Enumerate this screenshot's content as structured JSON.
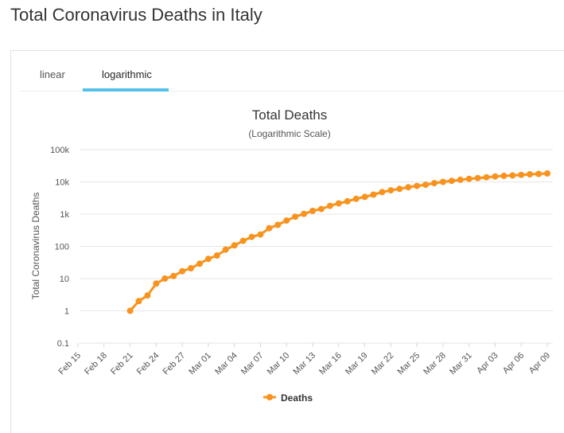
{
  "page": {
    "title": "Total Coronavirus Deaths in Italy"
  },
  "tabs": [
    {
      "label": "linear",
      "active": false
    },
    {
      "label": "logarithmic",
      "active": true
    }
  ],
  "colors": {
    "series": "#f7931e",
    "tab_accent": "#56c1e8",
    "grid": "#e6e6e6"
  },
  "chart_data": {
    "type": "line",
    "title": "Total Deaths",
    "subtitle": "(Logarithmic Scale)",
    "ylabel": "Total Coronavirus Deaths",
    "xlabel": "",
    "yscale": "log",
    "ylim": [
      0.1,
      100000
    ],
    "yticks": [
      {
        "value": 100000,
        "label": "100k"
      },
      {
        "value": 10000,
        "label": "10k"
      },
      {
        "value": 1000,
        "label": "1k"
      },
      {
        "value": 100,
        "label": "100"
      },
      {
        "value": 10,
        "label": "10"
      },
      {
        "value": 1,
        "label": "1"
      },
      {
        "value": 0.1,
        "label": "0.1"
      }
    ],
    "xticks": [
      "Feb 15",
      "Feb 18",
      "Feb 21",
      "Feb 24",
      "Feb 27",
      "Mar 01",
      "Mar 04",
      "Mar 07",
      "Mar 10",
      "Mar 13",
      "Mar 16",
      "Mar 19",
      "Mar 22",
      "Mar 25",
      "Mar 28",
      "Mar 31",
      "Apr 03",
      "Apr 06",
      "Apr 09"
    ],
    "grid": true,
    "legend_position": "bottom-center",
    "series": [
      {
        "name": "Deaths",
        "x": [
          "Feb 21",
          "Feb 22",
          "Feb 23",
          "Feb 24",
          "Feb 25",
          "Feb 26",
          "Feb 27",
          "Feb 28",
          "Feb 29",
          "Mar 01",
          "Mar 02",
          "Mar 03",
          "Mar 04",
          "Mar 05",
          "Mar 06",
          "Mar 07",
          "Mar 08",
          "Mar 09",
          "Mar 10",
          "Mar 11",
          "Mar 12",
          "Mar 13",
          "Mar 14",
          "Mar 15",
          "Mar 16",
          "Mar 17",
          "Mar 18",
          "Mar 19",
          "Mar 20",
          "Mar 21",
          "Mar 22",
          "Mar 23",
          "Mar 24",
          "Mar 25",
          "Mar 26",
          "Mar 27",
          "Mar 28",
          "Mar 29",
          "Mar 30",
          "Mar 31",
          "Apr 01",
          "Apr 02",
          "Apr 03",
          "Apr 04",
          "Apr 05",
          "Apr 06",
          "Apr 07",
          "Apr 08",
          "Apr 09"
        ],
        "values": [
          1,
          2,
          3,
          7,
          10,
          12,
          17,
          21,
          29,
          41,
          52,
          79,
          107,
          148,
          197,
          233,
          366,
          463,
          631,
          827,
          1016,
          1266,
          1441,
          1809,
          2158,
          2503,
          2978,
          3405,
          4032,
          4825,
          5476,
          6077,
          6820,
          7503,
          8165,
          9134,
          10023,
          10779,
          11591,
          12428,
          13155,
          13915,
          14681,
          15362,
          15887,
          16523,
          17127,
          17669,
          18279
        ]
      }
    ]
  }
}
